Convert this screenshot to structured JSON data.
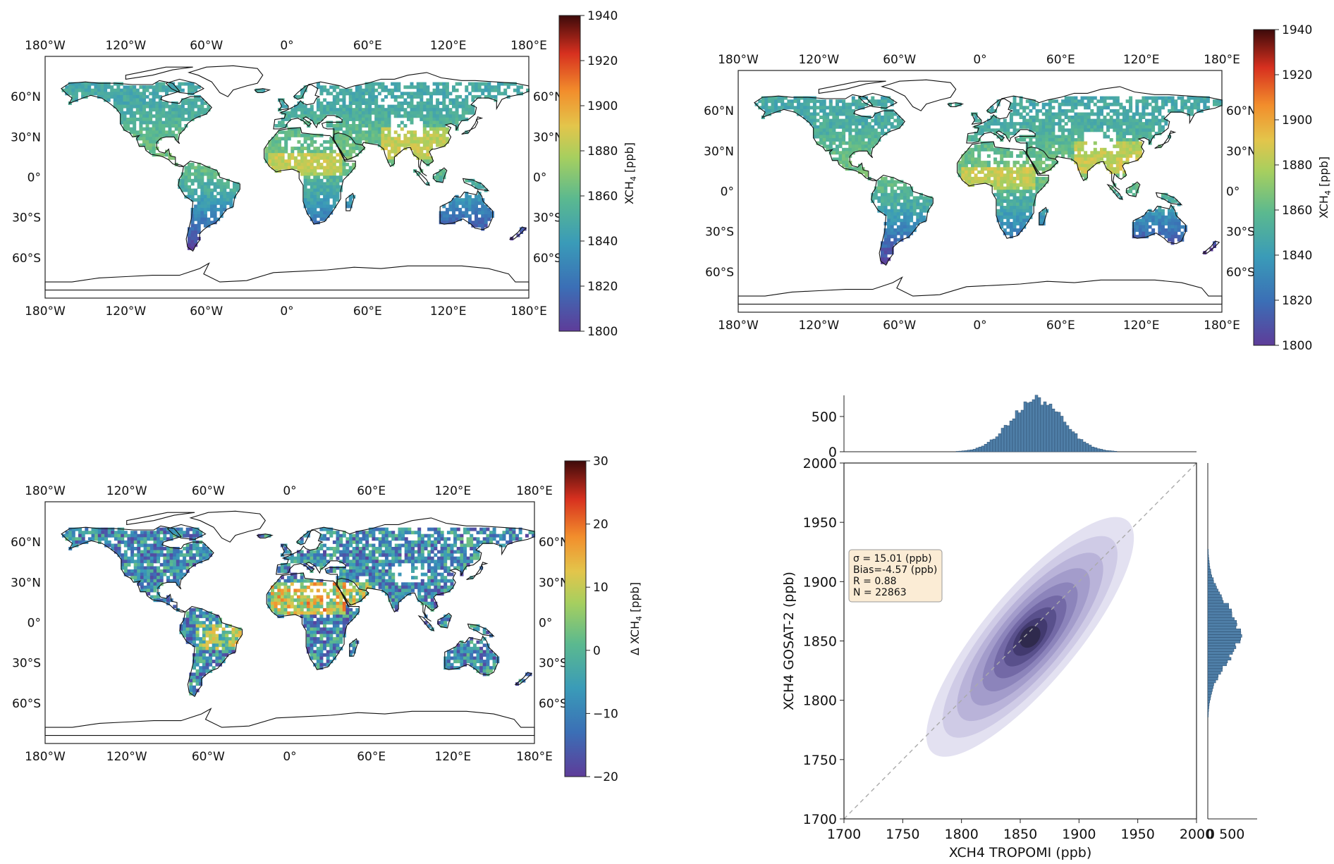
{
  "chart_data": [
    {
      "type": "heatmap",
      "id": "map-a",
      "title": "",
      "x_ticks": [
        "180°W",
        "120°W",
        "60°W",
        "0°",
        "60°E",
        "120°E",
        "180°E"
      ],
      "y_ticks": [
        "60°N",
        "30°N",
        "0°",
        "30°S",
        "60°S"
      ],
      "xlim": [
        -180,
        180
      ],
      "ylim": [
        -90,
        90
      ],
      "colorbar": {
        "label": "XCH",
        "label_sub": "4",
        "label_unit": " [ppb]",
        "range": [
          1800,
          1940
        ],
        "ticks": [
          "1800",
          "1820",
          "1840",
          "1860",
          "1880",
          "1900",
          "1920",
          "1940"
        ]
      }
    },
    {
      "type": "heatmap",
      "id": "map-b",
      "title": "",
      "x_ticks": [
        "180°W",
        "120°W",
        "60°W",
        "0°",
        "60°E",
        "120°E",
        "180°E"
      ],
      "y_ticks": [
        "60°N",
        "30°N",
        "0°",
        "30°S",
        "60°S"
      ],
      "xlim": [
        -180,
        180
      ],
      "ylim": [
        -90,
        90
      ],
      "colorbar": {
        "label": "XCH",
        "label_sub": "4",
        "label_unit": " [ppb]",
        "range": [
          1800,
          1940
        ],
        "ticks": [
          "1800",
          "1820",
          "1840",
          "1860",
          "1880",
          "1900",
          "1920",
          "1940"
        ]
      }
    },
    {
      "type": "heatmap",
      "id": "map-diff",
      "title": "",
      "x_ticks": [
        "180°W",
        "120°W",
        "60°W",
        "0°",
        "60°E",
        "120°E",
        "180°E"
      ],
      "y_ticks": [
        "60°N",
        "30°N",
        "0°",
        "30°S",
        "60°S"
      ],
      "xlim": [
        -180,
        180
      ],
      "ylim": [
        -90,
        90
      ],
      "colorbar": {
        "label": "Δ XCH",
        "label_sub": "4",
        "label_unit": " [ppb]",
        "range": [
          -20,
          30
        ],
        "ticks": [
          "−20",
          "−10",
          "0",
          "10",
          "20",
          "30"
        ]
      }
    },
    {
      "type": "scatter",
      "id": "joint-density",
      "title": "",
      "xlabel": "XCH4 TROPOMI (ppb)",
      "ylabel": "XCH4 GOSAT-2 (ppb)",
      "xlim": [
        1700,
        2000
      ],
      "ylim": [
        1700,
        2000
      ],
      "x_ticks": [
        "1700",
        "1750",
        "1800",
        "1850",
        "1900",
        "1950",
        "2000"
      ],
      "y_ticks": [
        "1700",
        "1750",
        "1800",
        "1850",
        "1900",
        "1950",
        "2000"
      ],
      "one_to_one_line": true,
      "density_center": [
        1862,
        1857
      ],
      "stats": {
        "sigma": "σ = 15.01 (ppb)",
        "bias": "Bias=-4.57 (ppb)",
        "r": "R = 0.88",
        "n": "N = 22863"
      },
      "top_histogram": {
        "y_ticks": [
          "0",
          "500"
        ],
        "ymax": 800,
        "peak": 740,
        "mean": 1863,
        "sd": 22
      },
      "right_histogram": {
        "x_ticks_label": "0 500",
        "xmax": 800,
        "peak": 520,
        "mean": 1855,
        "sd": 24
      }
    }
  ]
}
